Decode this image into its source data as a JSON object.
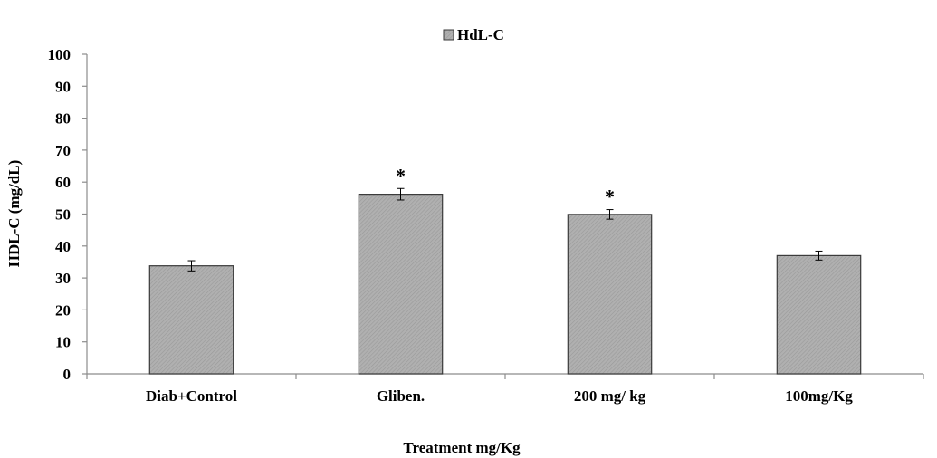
{
  "chart_data": {
    "type": "bar",
    "categories": [
      "Diab+Control",
      "Gliben.",
      "200 mg/ kg",
      "100mg/Kg"
    ],
    "series": [
      {
        "name": "HdL-C",
        "values": [
          33.8,
          56.2,
          49.9,
          37.0
        ],
        "errors": [
          1.6,
          1.8,
          1.5,
          1.4
        ],
        "annotations": [
          "",
          "*",
          "*",
          ""
        ]
      }
    ],
    "xlabel": "Treatment mg/Kg",
    "ylabel": "HDL-C (mg/dL)",
    "ylim": [
      0,
      100
    ],
    "yticks": [
      0,
      10,
      20,
      30,
      40,
      50,
      60,
      70,
      80,
      90,
      100
    ],
    "legend_position": "top-center",
    "grid": false,
    "colors": {
      "bar_fill": "#a9a9a9",
      "bar_stroke": "#3a3a3a",
      "axis": "#8c8c8c"
    }
  }
}
